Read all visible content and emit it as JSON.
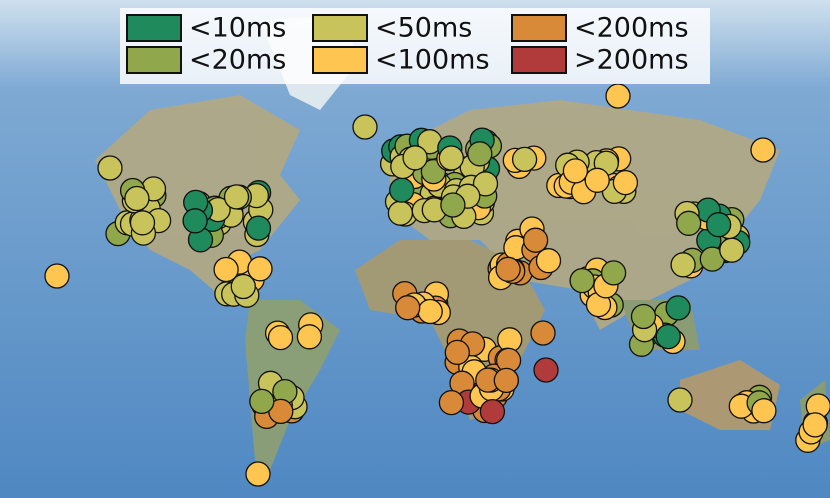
{
  "legend": {
    "items": [
      {
        "label": "<10ms",
        "color": "#1f8a5b"
      },
      {
        "label": "<20ms",
        "color": "#90a84b"
      },
      {
        "label": "<50ms",
        "color": "#c8c35a"
      },
      {
        "label": "<100ms",
        "color": "#fec650"
      },
      {
        "label": "<200ms",
        "color": "#d88a38"
      },
      {
        "label": ">200ms",
        "color": "#b13a3b"
      }
    ]
  }
}
